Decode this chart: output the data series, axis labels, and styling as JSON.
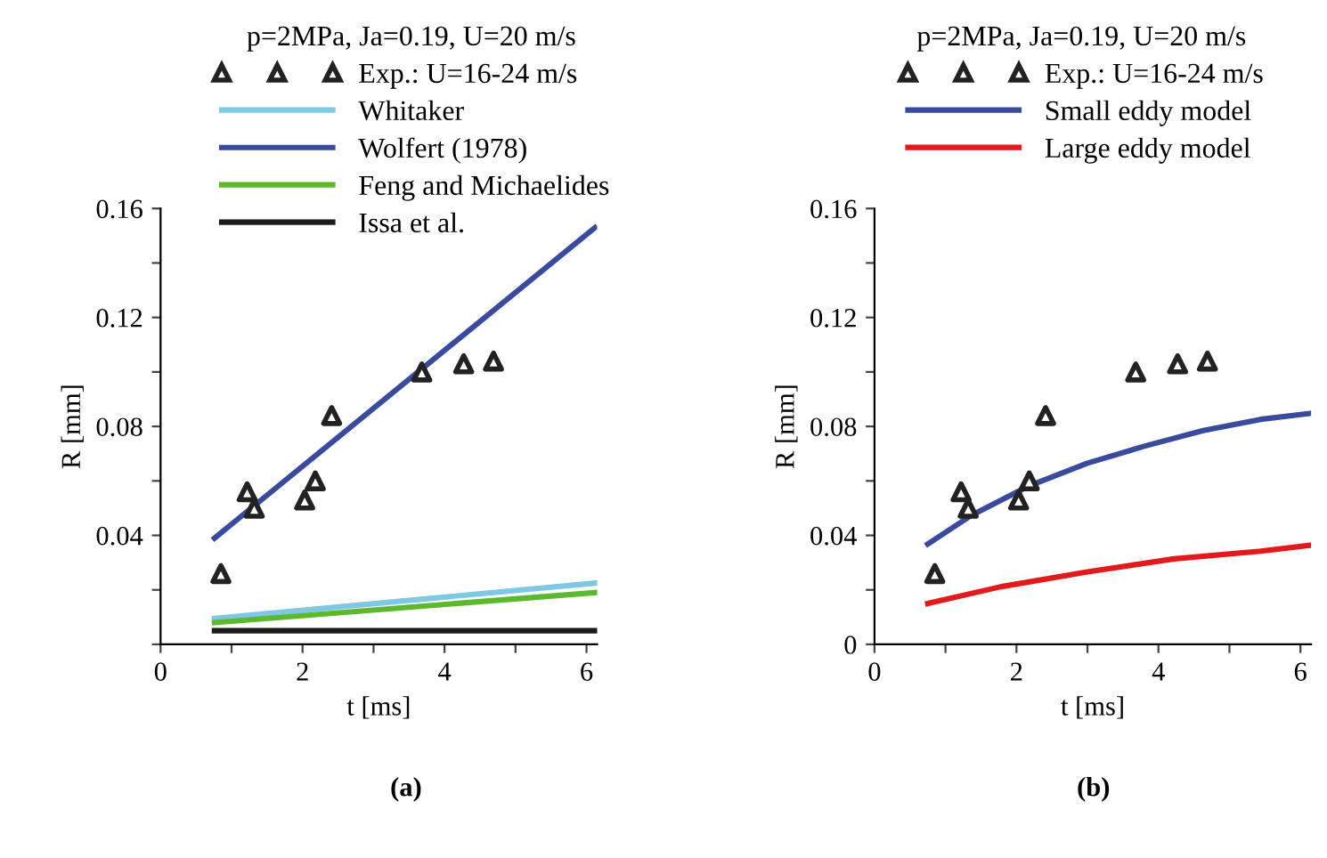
{
  "chart_data": [
    {
      "type": "line",
      "legend_title": "p=2MPa, Ja=0.19, U=20 m/s",
      "xlabel": "t [ms]",
      "ylabel": "R [mm]",
      "annotations": [
        "(a)"
      ],
      "xlim": [
        0,
        6.15
      ],
      "xticks": [
        0,
        {
          "value": 1,
          "label": null
        },
        2,
        {
          "value": 3,
          "label": null
        },
        4,
        {
          "value": 5,
          "label": null
        },
        6
      ],
      "ylim": [
        0,
        0.16
      ],
      "yticks": [
        {
          "value": 0,
          "label": null
        },
        {
          "value": 0.02,
          "label": null
        },
        0.04,
        {
          "value": 0.06,
          "label": null
        },
        0.08,
        {
          "value": 0.1,
          "label": null
        },
        0.12,
        {
          "value": 0.14,
          "label": null
        },
        0.16
      ],
      "grid": false,
      "legend": "top",
      "line_style": "solid",
      "series": [
        {
          "name": "Exp.: U=16-24 m/s",
          "type": "scatter",
          "marker": "triangle",
          "color": "#222222",
          "x": [
            0.85,
            1.22,
            1.32,
            2.03,
            2.18,
            2.41,
            3.68,
            4.27,
            4.69
          ],
          "values": [
            0.026,
            0.056,
            0.05,
            0.053,
            0.06,
            0.084,
            0.1,
            0.103,
            0.104
          ]
        },
        {
          "name": "Whitaker",
          "color": "#7ec8e3",
          "x": [
            0.76,
            6.12
          ],
          "values": [
            0.0095,
            0.0225
          ]
        },
        {
          "name": "Wolfert (1978)",
          "color": "#3a4a9c",
          "x": [
            0.76,
            6.12
          ],
          "values": [
            0.039,
            0.153
          ]
        },
        {
          "name": "Feng and Michaelides",
          "color": "#5cb82e",
          "x": [
            0.76,
            6.12
          ],
          "values": [
            0.008,
            0.019
          ]
        },
        {
          "name": "Issa et al.",
          "color": "#1a1a1a",
          "x": [
            0.76,
            6.12
          ],
          "values": [
            0.005,
            0.005
          ]
        }
      ]
    },
    {
      "type": "line",
      "legend_title": "p=2MPa, Ja=0.19, U=20 m/s",
      "xlabel": "t [ms]",
      "ylabel": "R [mm]",
      "annotations": [
        "(b)"
      ],
      "xlim": [
        0,
        6.15
      ],
      "xticks": [
        0,
        {
          "value": 1,
          "label": null
        },
        2,
        {
          "value": 3,
          "label": null
        },
        4,
        {
          "value": 5,
          "label": null
        },
        6
      ],
      "ylim": [
        0,
        0.16
      ],
      "yticks": [
        0,
        {
          "value": 0.02,
          "label": null
        },
        0.04,
        {
          "value": 0.06,
          "label": null
        },
        0.08,
        {
          "value": 0.1,
          "label": null
        },
        0.12,
        {
          "value": 0.14,
          "label": null
        },
        0.16
      ],
      "grid": false,
      "legend": "top",
      "line_style": "solid",
      "series": [
        {
          "name": "Exp.: U=16-24 m/s",
          "type": "scatter",
          "marker": "triangle",
          "color": "#222222",
          "x": [
            0.85,
            1.22,
            1.32,
            2.03,
            2.18,
            2.41,
            3.68,
            4.27,
            4.69
          ],
          "values": [
            0.026,
            0.056,
            0.05,
            0.053,
            0.06,
            0.084,
            0.1,
            0.103,
            0.104
          ]
        },
        {
          "name": "Small eddy model",
          "color": "#3a4a9c",
          "x": [
            0.75,
            1.36,
            2.18,
            3.0,
            3.81,
            4.63,
            5.44,
            6.14
          ],
          "values": [
            0.0368,
            0.0473,
            0.0582,
            0.0665,
            0.0728,
            0.0785,
            0.0826,
            0.0848
          ]
        },
        {
          "name": "Large eddy model",
          "color": "#e31a1c",
          "x": [
            0.75,
            1.77,
            3.0,
            4.22,
            5.44,
            6.14
          ],
          "values": [
            0.015,
            0.0211,
            0.0266,
            0.0314,
            0.0342,
            0.0364
          ]
        }
      ]
    }
  ]
}
